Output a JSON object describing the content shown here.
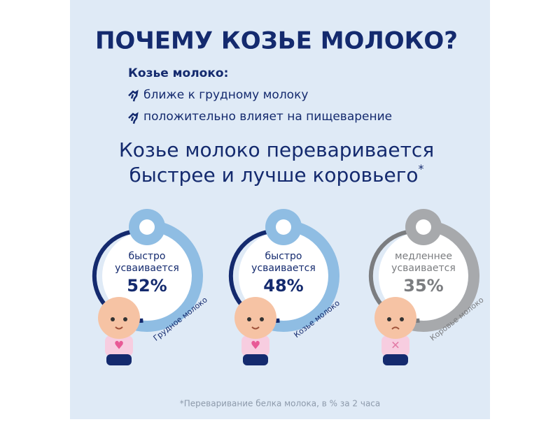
{
  "title": "ПОЧЕМУ КОЗЬЕ МОЛОКО?",
  "intro": {
    "heading": "Козье молоко:",
    "items": [
      "ближе к грудному молоку",
      "положительно влияет на пищеварение"
    ]
  },
  "headline": {
    "lines": [
      "Козье молоко переваривается",
      "быстрее и лучше коровьего"
    ],
    "mark": "*"
  },
  "cards": [
    {
      "line1": "быстро",
      "line2": "усваивается",
      "percent": "52%",
      "label": "Грудное молоко"
    },
    {
      "line1": "быстро",
      "line2": "усваивается",
      "percent": "48%",
      "label": "Козье молоко"
    },
    {
      "line1": "медленнее",
      "line2": "усваивается",
      "percent": "35%",
      "label": "Коровье молоко"
    }
  ],
  "footnote": "*Переваривание белка молока, в % за 2 часа"
}
